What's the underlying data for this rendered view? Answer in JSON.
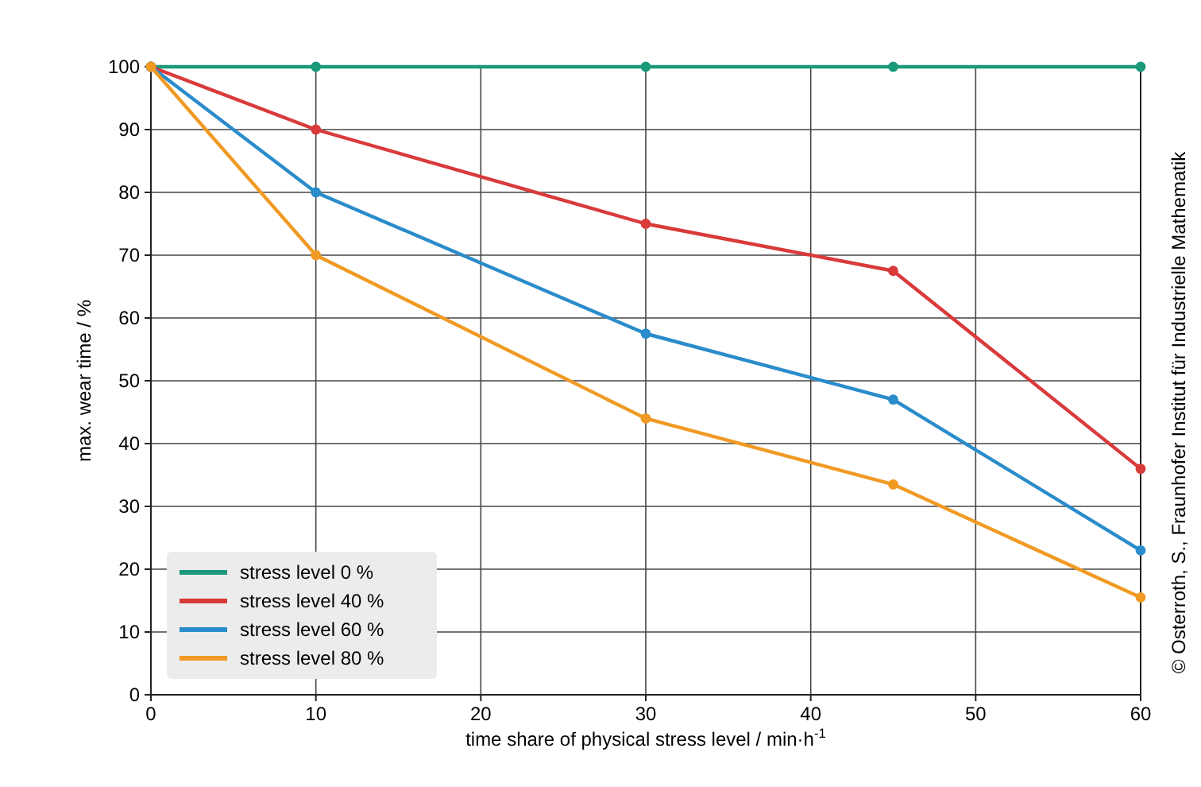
{
  "chart_data": {
    "type": "line",
    "xlabel": "time share of physical stress level / min·h$^{-1}$",
    "ylabel": "max. wear time / %",
    "x": [
      0,
      10,
      30,
      45,
      60
    ],
    "series": [
      {
        "name": "stress level 0 %",
        "color": "#1a9a7a",
        "values": [
          100,
          100,
          100,
          100,
          100
        ]
      },
      {
        "name": "stress level 40 %",
        "color": "#d93a3a",
        "values": [
          100,
          90,
          75,
          67.5,
          36
        ]
      },
      {
        "name": "stress level 60 %",
        "color": "#2a8ccb",
        "values": [
          100,
          80,
          57.5,
          47,
          23
        ]
      },
      {
        "name": "stress level 80 %",
        "color": "#f09a24",
        "values": [
          100,
          70,
          44,
          33.5,
          15.5
        ]
      }
    ],
    "xlim": [
      0,
      60
    ],
    "xticks": [
      0,
      10,
      20,
      30,
      40,
      50,
      60
    ],
    "ylim": [
      0,
      100
    ],
    "yticks": [
      0,
      10,
      20,
      30,
      40,
      50,
      60,
      70,
      80,
      90,
      100
    ],
    "grid": true,
    "legend": "bottom left",
    "marker": "circle",
    "line_style": "solid",
    "annotations": [
      "© Osterroth, S., Fraunhofer Institut für Industrielle Mathematik"
    ]
  }
}
